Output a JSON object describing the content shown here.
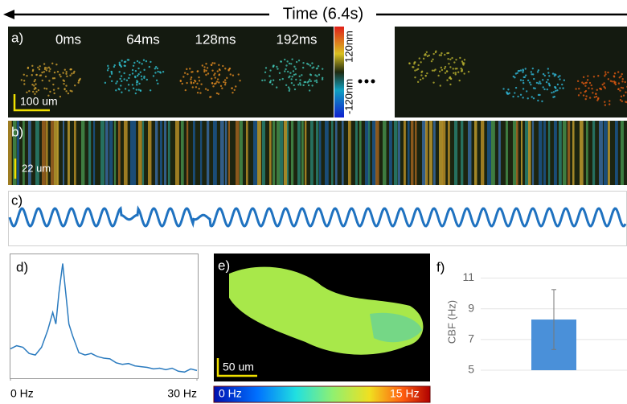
{
  "header": {
    "title": "Time (6.4s)"
  },
  "panel_a": {
    "label": "a)",
    "frames": [
      "0ms",
      "64ms",
      "128ms",
      "192ms"
    ],
    "scale_bar": "100 um",
    "colorbar": {
      "max": "120nm",
      "min": "-120nm"
    }
  },
  "panel_b": {
    "label": "b)",
    "scale_bar": "22 um"
  },
  "panel_c": {
    "label": "c)"
  },
  "panel_e": {
    "label": "e)",
    "scale_bar": "50 um",
    "colorbar": {
      "min": "0 Hz",
      "max": "15 Hz"
    }
  },
  "chart_data": [
    {
      "type": "line",
      "label": "d)",
      "color": "#2b7bbf",
      "x": [
        0,
        1,
        2,
        3,
        4,
        5,
        6,
        6.8,
        7.3,
        7.8,
        8.4,
        8.9,
        9.4,
        10,
        11,
        12,
        13,
        14,
        15,
        16,
        17,
        18,
        19,
        20,
        21,
        22,
        23,
        24,
        25,
        26,
        27,
        28,
        29,
        30
      ],
      "values": [
        38,
        42,
        40,
        32,
        30,
        40,
        62,
        85,
        70,
        110,
        148,
        110,
        70,
        55,
        33,
        30,
        32,
        28,
        26,
        25,
        20,
        18,
        19,
        16,
        15,
        14,
        12,
        13,
        11,
        13,
        9,
        8,
        12,
        10
      ],
      "xlim": [
        0,
        30
      ],
      "ylim": [
        0,
        160
      ],
      "xticks": [
        {
          "value": 0,
          "label": "0 Hz"
        },
        {
          "value": 30,
          "label": "30 Hz"
        }
      ]
    },
    {
      "type": "bar",
      "label": "f)",
      "y_label": "CBF (Hz)",
      "color": "#4a90d9",
      "categories": [
        null
      ],
      "values": [
        8.3
      ],
      "errors": [
        1.95
      ],
      "ylim": [
        5,
        11.5
      ],
      "yticks": [
        5,
        7,
        9,
        11
      ],
      "grid": true
    }
  ]
}
